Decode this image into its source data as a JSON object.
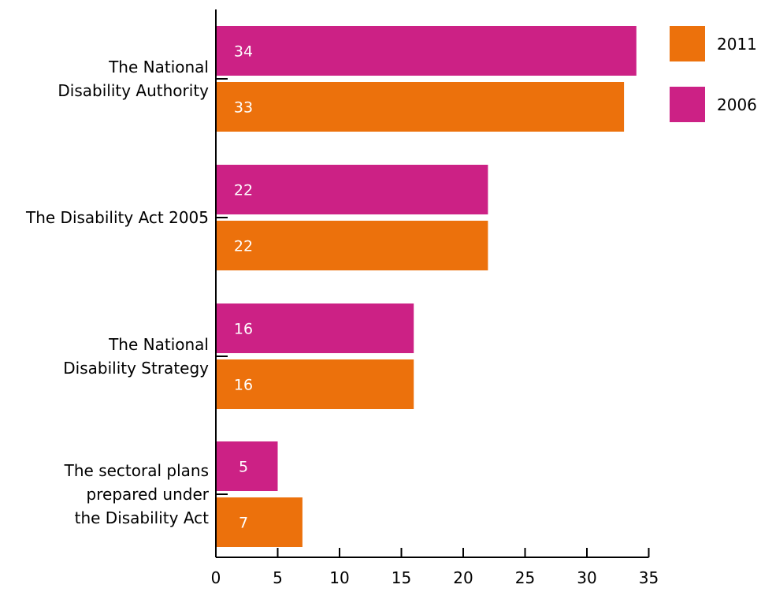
{
  "chart_data": {
    "type": "bar",
    "orientation": "horizontal",
    "categories": [
      [
        "The National",
        "Disability Authority"
      ],
      [
        "The Disability Act 2005"
      ],
      [
        "The National",
        "Disability Strategy"
      ],
      [
        "The sectoral plans",
        "prepared under",
        "the Disability Act"
      ]
    ],
    "series": [
      {
        "name": "2006",
        "values": [
          34,
          22,
          16,
          5
        ],
        "color": "#cc2185"
      },
      {
        "name": "2011",
        "values": [
          33,
          22,
          16,
          7
        ],
        "color": "#ec710c"
      }
    ],
    "xticks": [
      "0",
      "5",
      "10",
      "15",
      "20",
      "25",
      "30",
      "35"
    ],
    "xlim": [
      0,
      35
    ],
    "legend": {
      "placement": "top-right",
      "order": [
        "2011",
        "2006"
      ]
    },
    "grid": false,
    "title": "",
    "xlabel": "",
    "ylabel": ""
  }
}
